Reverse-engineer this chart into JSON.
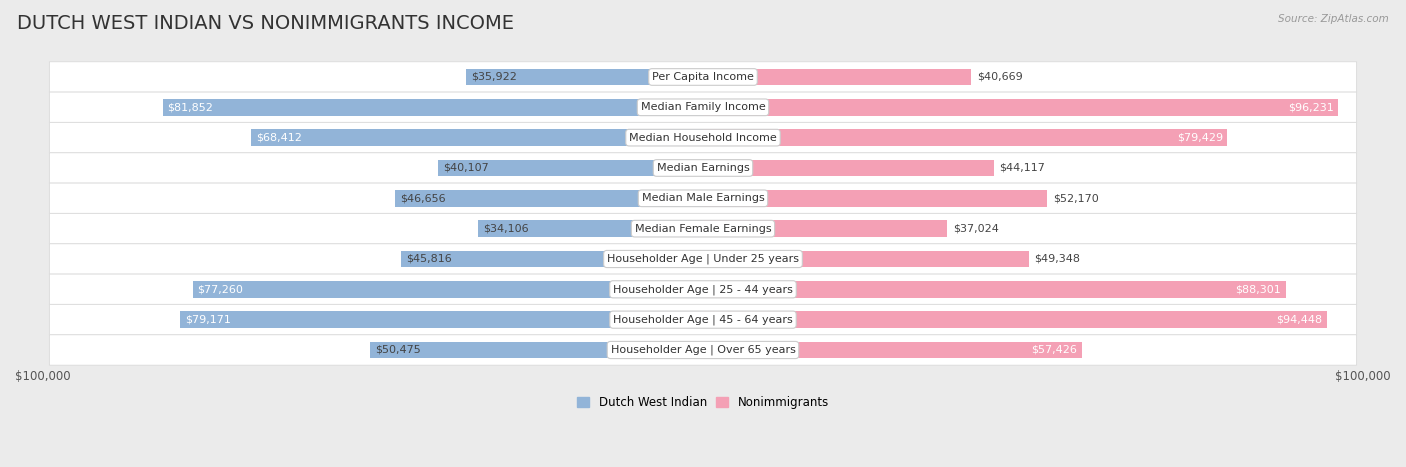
{
  "title": "DUTCH WEST INDIAN VS NONIMMIGRANTS INCOME",
  "source": "Source: ZipAtlas.com",
  "categories": [
    "Per Capita Income",
    "Median Family Income",
    "Median Household Income",
    "Median Earnings",
    "Median Male Earnings",
    "Median Female Earnings",
    "Householder Age | Under 25 years",
    "Householder Age | 25 - 44 years",
    "Householder Age | 45 - 64 years",
    "Householder Age | Over 65 years"
  ],
  "dutch_values": [
    35922,
    81852,
    68412,
    40107,
    46656,
    34106,
    45816,
    77260,
    79171,
    50475
  ],
  "nonimm_values": [
    40669,
    96231,
    79429,
    44117,
    52170,
    37024,
    49348,
    88301,
    94448,
    57426
  ],
  "max_val": 100000,
  "dutch_color": "#92b4d8",
  "nonimm_color": "#f4a0b5",
  "dutch_label": "Dutch West Indian",
  "nonimm_label": "Nonimmigrants",
  "bg_color": "#ebebeb",
  "bar_height": 0.55,
  "title_fontsize": 14,
  "value_fontsize": 8,
  "category_fontsize": 8,
  "inside_threshold": 55000,
  "inside_color": "white",
  "outside_color": "#444444"
}
